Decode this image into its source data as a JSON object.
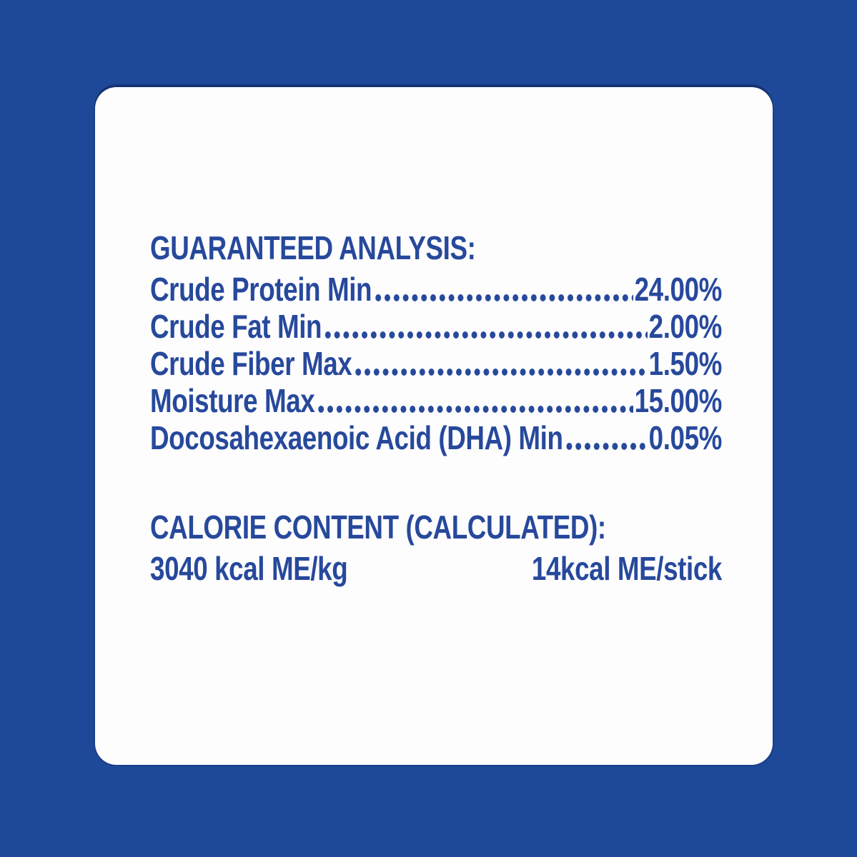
{
  "colors": {
    "background": "#1e4998",
    "text": "#27499c",
    "card": "#fdfdfe"
  },
  "guaranteed_analysis": {
    "heading": "GUARANTEED ANALYSIS:",
    "rows": [
      {
        "label": "Crude Protein Min",
        "value": "24.00%"
      },
      {
        "label": "Crude Fat Min",
        "value": "2.00%"
      },
      {
        "label": "Crude Fiber Max",
        "value": "1.50%"
      },
      {
        "label": "Moisture Max",
        "value": "15.00%"
      },
      {
        "label": "Docosahexaenoic Acid (DHA) Min",
        "value": "0.05%"
      }
    ]
  },
  "calorie_content": {
    "heading": "CALORIE CONTENT (CALCULATED):",
    "per_kg": "3040 kcal ME/kg",
    "per_stick": "14kcal ME/stick"
  }
}
